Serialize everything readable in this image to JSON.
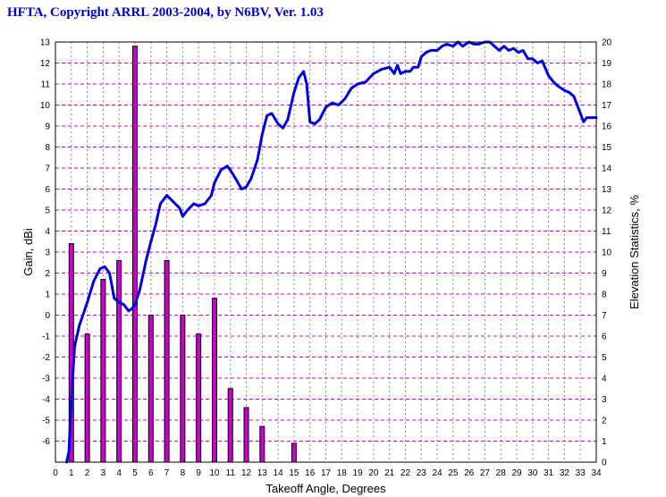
{
  "title": "HFTA, Copyright ARRL 2003-2004, by N6BV, Ver. 1.03",
  "chart_data": {
    "type": "bar",
    "xlabel": "Takeoff Angle, Degrees",
    "ylabel_left": "Gain, dBi",
    "ylabel_right": "Elevation Statistics, %",
    "xlim": [
      0,
      34
    ],
    "ylim_left": [
      -7,
      13
    ],
    "ylim_right": [
      0,
      20
    ],
    "x_ticks": [
      0,
      1,
      2,
      3,
      4,
      5,
      6,
      7,
      8,
      9,
      10,
      11,
      12,
      13,
      14,
      15,
      16,
      17,
      18,
      19,
      20,
      21,
      22,
      23,
      24,
      25,
      26,
      27,
      28,
      29,
      30,
      31,
      32,
      33,
      34
    ],
    "y_left_ticks": [
      -6,
      -5,
      -4,
      -3,
      -2,
      -1,
      0,
      1,
      2,
      3,
      4,
      5,
      6,
      7,
      8,
      9,
      10,
      11,
      12,
      13
    ],
    "y_right_ticks": [
      0,
      1,
      2,
      3,
      4,
      5,
      6,
      7,
      8,
      9,
      10,
      11,
      12,
      13,
      14,
      15,
      16,
      17,
      18,
      19,
      20
    ],
    "grid": true,
    "colors": {
      "gain_line": "#0000dd",
      "bars": "#cc00cc",
      "grid_dashed": "#cc00cc",
      "grid_dotted": "#888888"
    },
    "series": [
      {
        "type": "bar",
        "axis": "right",
        "x": [
          1,
          2,
          3,
          4,
          5,
          6,
          7,
          8,
          9,
          10,
          11,
          12,
          13,
          15
        ],
        "values": [
          10.4,
          6.1,
          8.7,
          9.6,
          19.8,
          7.0,
          9.6,
          7.0,
          6.1,
          7.8,
          3.5,
          2.6,
          1.7,
          0.9
        ]
      },
      {
        "type": "line",
        "axis": "left",
        "x": [
          0.7,
          0.85,
          1.0,
          1.2,
          1.5,
          2.0,
          2.4,
          2.8,
          3.1,
          3.4,
          3.7,
          4.0,
          4.3,
          4.6,
          4.8,
          5.0,
          5.3,
          5.7,
          6.0,
          6.3,
          6.6,
          7.0,
          7.4,
          7.8,
          8.0,
          8.3,
          8.7,
          9.0,
          9.4,
          9.8,
          10.0,
          10.4,
          10.8,
          11.0,
          11.4,
          11.7,
          12.0,
          12.3,
          12.7,
          13.0,
          13.3,
          13.6,
          14.0,
          14.3,
          14.6,
          15.0,
          15.3,
          15.6,
          15.8,
          16.0,
          16.3,
          16.6,
          17.0,
          17.4,
          17.8,
          18.2,
          18.6,
          19.0,
          19.5,
          20.0,
          20.5,
          21.0,
          21.3,
          21.5,
          21.7,
          22.0,
          22.3,
          22.5,
          22.8,
          23.0,
          23.3,
          23.6,
          24.0,
          24.3,
          24.6,
          25.0,
          25.3,
          25.6,
          26.0,
          26.3,
          26.6,
          27.0,
          27.3,
          27.6,
          27.9,
          28.2,
          28.5,
          28.8,
          29.1,
          29.4,
          29.7,
          30.0,
          30.3,
          30.6,
          31.0,
          31.3,
          31.6,
          32.0,
          32.3,
          32.6,
          33.0,
          33.2,
          33.4,
          33.6,
          33.8,
          34.0
        ],
        "y": [
          -7.0,
          -6.5,
          -4.0,
          -1.5,
          -0.5,
          0.6,
          1.6,
          2.2,
          2.3,
          2.0,
          0.8,
          0.6,
          0.5,
          0.2,
          0.3,
          0.5,
          1.2,
          2.6,
          3.5,
          4.3,
          5.3,
          5.7,
          5.4,
          5.1,
          4.7,
          5.0,
          5.3,
          5.2,
          5.3,
          5.7,
          6.3,
          6.9,
          7.1,
          6.9,
          6.4,
          6.0,
          6.1,
          6.5,
          7.4,
          8.6,
          9.5,
          9.6,
          9.1,
          8.9,
          9.3,
          10.6,
          11.3,
          11.6,
          11.0,
          9.2,
          9.1,
          9.3,
          9.9,
          10.1,
          10.0,
          10.3,
          10.8,
          11.0,
          11.1,
          11.5,
          11.7,
          11.8,
          11.5,
          11.9,
          11.5,
          11.6,
          11.6,
          11.8,
          11.8,
          12.3,
          12.5,
          12.6,
          12.6,
          12.8,
          12.9,
          12.8,
          13.0,
          12.8,
          13.0,
          12.9,
          12.9,
          13.0,
          13.0,
          12.8,
          12.6,
          12.8,
          12.6,
          12.7,
          12.5,
          12.6,
          12.2,
          12.2,
          12.0,
          12.1,
          11.4,
          11.1,
          10.9,
          10.7,
          10.6,
          10.4,
          9.6,
          9.2,
          9.4,
          9.4,
          9.4,
          9.4
        ]
      }
    ]
  }
}
